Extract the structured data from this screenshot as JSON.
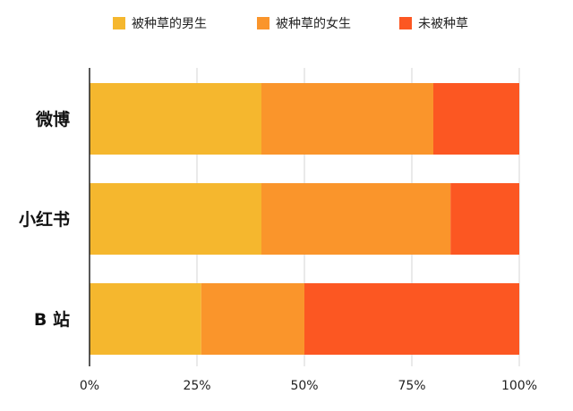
{
  "chart_data": {
    "type": "bar",
    "orientation": "horizontal",
    "stacked": true,
    "categories": [
      "微博",
      "小红书",
      "B 站"
    ],
    "series": [
      {
        "name": "被种草的男生",
        "color": "#F5B72E",
        "values": [
          40,
          40,
          26
        ]
      },
      {
        "name": "被种草的女生",
        "color": "#FA952B",
        "values": [
          40,
          44,
          24
        ]
      },
      {
        "name": "未被种草",
        "color": "#FC5722",
        "values": [
          20,
          16,
          50
        ]
      }
    ],
    "xlim": [
      0,
      100
    ],
    "x_ticks": [
      0,
      25,
      50,
      75,
      100
    ],
    "x_tick_labels": [
      "0%",
      "25%",
      "50%",
      "75%",
      "100%"
    ],
    "title": "",
    "xlabel": "",
    "ylabel": "",
    "grid": "vertical",
    "legend_position": "top-center"
  }
}
